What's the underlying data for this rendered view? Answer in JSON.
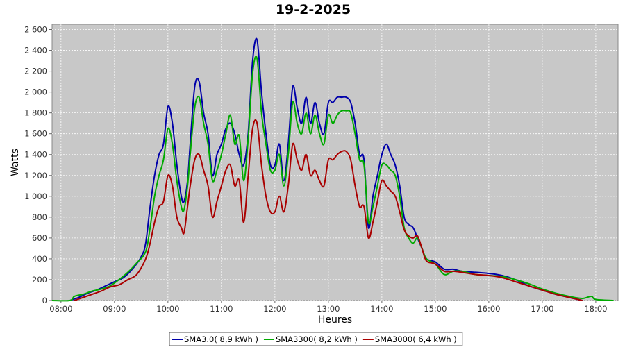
{
  "chart_data": {
    "type": "line",
    "title": "19-2-2025",
    "xlabel": "Heures",
    "ylabel": "Watts",
    "xlim": [
      "07:50",
      "18:25"
    ],
    "ylim": [
      0,
      2650
    ],
    "x_ticks": [
      "08:00",
      "09:00",
      "10:00",
      "11:00",
      "12:00",
      "13:00",
      "14:00",
      "15:00",
      "16:00",
      "17:00",
      "18:00"
    ],
    "y_ticks": [
      "0",
      "200",
      "400",
      "600",
      "800",
      "1 000",
      "1 200",
      "1 400",
      "1 600",
      "1 800",
      "2 000",
      "2 200",
      "2 400",
      "2 600"
    ],
    "grid": true,
    "legend_position": "bottom",
    "colors": {
      "plot_background": "#c8c8c8",
      "grid": "#ffffff"
    },
    "series": [
      {
        "name": "SMA3.0( 8,9 kWh )",
        "color": "#0000aa",
        "points": [
          [
            "08:10",
            0
          ],
          [
            "08:20",
            30
          ],
          [
            "08:30",
            70
          ],
          [
            "08:40",
            100
          ],
          [
            "08:50",
            140
          ],
          [
            "09:00",
            180
          ],
          [
            "09:10",
            220
          ],
          [
            "09:20",
            300
          ],
          [
            "09:30",
            420
          ],
          [
            "09:35",
            550
          ],
          [
            "09:40",
            900
          ],
          [
            "09:45",
            1200
          ],
          [
            "09:50",
            1400
          ],
          [
            "09:55",
            1500
          ],
          [
            "10:00",
            1860
          ],
          [
            "10:05",
            1700
          ],
          [
            "10:10",
            1300
          ],
          [
            "10:15",
            1000
          ],
          [
            "10:18",
            950
          ],
          [
            "10:22",
            1150
          ],
          [
            "10:25",
            1500
          ],
          [
            "10:30",
            2050
          ],
          [
            "10:35",
            2100
          ],
          [
            "10:40",
            1800
          ],
          [
            "10:45",
            1600
          ],
          [
            "10:50",
            1200
          ],
          [
            "10:55",
            1400
          ],
          [
            "11:00",
            1500
          ],
          [
            "11:05",
            1650
          ],
          [
            "11:10",
            1700
          ],
          [
            "11:15",
            1600
          ],
          [
            "11:20",
            1400
          ],
          [
            "11:25",
            1300
          ],
          [
            "11:30",
            1600
          ],
          [
            "11:35",
            2300
          ],
          [
            "11:40",
            2500
          ],
          [
            "11:45",
            2000
          ],
          [
            "11:50",
            1600
          ],
          [
            "11:55",
            1300
          ],
          [
            "12:00",
            1300
          ],
          [
            "12:05",
            1500
          ],
          [
            "12:10",
            1150
          ],
          [
            "12:15",
            1500
          ],
          [
            "12:20",
            2050
          ],
          [
            "12:25",
            1850
          ],
          [
            "12:30",
            1700
          ],
          [
            "12:35",
            1950
          ],
          [
            "12:40",
            1700
          ],
          [
            "12:45",
            1900
          ],
          [
            "12:50",
            1700
          ],
          [
            "12:55",
            1600
          ],
          [
            "13:00",
            1900
          ],
          [
            "13:05",
            1900
          ],
          [
            "13:10",
            1950
          ],
          [
            "13:15",
            1950
          ],
          [
            "13:20",
            1950
          ],
          [
            "13:25",
            1900
          ],
          [
            "13:30",
            1700
          ],
          [
            "13:35",
            1400
          ],
          [
            "13:40",
            1350
          ],
          [
            "13:45",
            700
          ],
          [
            "13:50",
            1000
          ],
          [
            "13:55",
            1200
          ],
          [
            "14:00",
            1400
          ],
          [
            "14:05",
            1500
          ],
          [
            "14:10",
            1400
          ],
          [
            "14:15",
            1300
          ],
          [
            "14:20",
            1100
          ],
          [
            "14:25",
            800
          ],
          [
            "14:30",
            730
          ],
          [
            "14:35",
            700
          ],
          [
            "14:40",
            600
          ],
          [
            "14:45",
            500
          ],
          [
            "14:50",
            400
          ],
          [
            "15:00",
            370
          ],
          [
            "15:10",
            300
          ],
          [
            "15:20",
            300
          ],
          [
            "15:30",
            280
          ],
          [
            "15:45",
            270
          ],
          [
            "16:00",
            260
          ],
          [
            "16:15",
            240
          ],
          [
            "16:30",
            200
          ],
          [
            "16:45",
            140
          ],
          [
            "17:00",
            100
          ],
          [
            "17:15",
            60
          ],
          [
            "17:30",
            30
          ],
          [
            "17:40",
            10
          ],
          [
            "17:45",
            0
          ]
        ]
      },
      {
        "name": "SMA3300( 8,2 kWh )",
        "color": "#00aa00",
        "points": [
          [
            "07:50",
            0
          ],
          [
            "08:10",
            0
          ],
          [
            "08:15",
            40
          ],
          [
            "08:25",
            60
          ],
          [
            "08:35",
            90
          ],
          [
            "08:45",
            110
          ],
          [
            "08:55",
            140
          ],
          [
            "09:05",
            200
          ],
          [
            "09:15",
            270
          ],
          [
            "09:25",
            360
          ],
          [
            "09:35",
            470
          ],
          [
            "09:40",
            700
          ],
          [
            "09:45",
            1000
          ],
          [
            "09:50",
            1200
          ],
          [
            "09:55",
            1350
          ],
          [
            "10:00",
            1650
          ],
          [
            "10:05",
            1500
          ],
          [
            "10:10",
            1150
          ],
          [
            "10:15",
            900
          ],
          [
            "10:18",
            870
          ],
          [
            "10:22",
            1100
          ],
          [
            "10:25",
            1400
          ],
          [
            "10:30",
            1850
          ],
          [
            "10:35",
            1950
          ],
          [
            "10:40",
            1700
          ],
          [
            "10:45",
            1500
          ],
          [
            "10:50",
            1150
          ],
          [
            "10:55",
            1250
          ],
          [
            "11:00",
            1400
          ],
          [
            "11:05",
            1600
          ],
          [
            "11:10",
            1780
          ],
          [
            "11:15",
            1500
          ],
          [
            "11:20",
            1580
          ],
          [
            "11:25",
            1150
          ],
          [
            "11:30",
            1550
          ],
          [
            "11:35",
            2180
          ],
          [
            "11:40",
            2320
          ],
          [
            "11:45",
            1800
          ],
          [
            "11:50",
            1500
          ],
          [
            "11:55",
            1250
          ],
          [
            "12:00",
            1250
          ],
          [
            "12:05",
            1400
          ],
          [
            "12:10",
            1100
          ],
          [
            "12:15",
            1400
          ],
          [
            "12:20",
            1900
          ],
          [
            "12:25",
            1700
          ],
          [
            "12:30",
            1600
          ],
          [
            "12:35",
            1800
          ],
          [
            "12:40",
            1600
          ],
          [
            "12:45",
            1780
          ],
          [
            "12:50",
            1600
          ],
          [
            "12:55",
            1500
          ],
          [
            "13:00",
            1780
          ],
          [
            "13:05",
            1700
          ],
          [
            "13:10",
            1780
          ],
          [
            "13:15",
            1820
          ],
          [
            "13:20",
            1820
          ],
          [
            "13:25",
            1800
          ],
          [
            "13:30",
            1600
          ],
          [
            "13:35",
            1350
          ],
          [
            "13:40",
            1300
          ],
          [
            "13:45",
            750
          ],
          [
            "13:50",
            900
          ],
          [
            "13:55",
            1100
          ],
          [
            "14:00",
            1300
          ],
          [
            "14:05",
            1300
          ],
          [
            "14:10",
            1250
          ],
          [
            "14:15",
            1200
          ],
          [
            "14:20",
            1000
          ],
          [
            "14:25",
            700
          ],
          [
            "14:30",
            600
          ],
          [
            "14:35",
            550
          ],
          [
            "14:40",
            600
          ],
          [
            "14:45",
            500
          ],
          [
            "14:50",
            400
          ],
          [
            "15:00",
            350
          ],
          [
            "15:10",
            250
          ],
          [
            "15:20",
            280
          ],
          [
            "15:30",
            280
          ],
          [
            "15:45",
            250
          ],
          [
            "16:00",
            240
          ],
          [
            "16:15",
            230
          ],
          [
            "16:30",
            200
          ],
          [
            "16:45",
            160
          ],
          [
            "17:00",
            110
          ],
          [
            "17:15",
            70
          ],
          [
            "17:30",
            40
          ],
          [
            "17:45",
            20
          ],
          [
            "17:55",
            40
          ],
          [
            "18:00",
            10
          ],
          [
            "18:20",
            0
          ]
        ]
      },
      {
        "name": "SMA3000( 6,4 kWh )",
        "color": "#aa0000",
        "points": [
          [
            "08:15",
            0
          ],
          [
            "08:25",
            30
          ],
          [
            "08:35",
            60
          ],
          [
            "08:45",
            90
          ],
          [
            "08:55",
            130
          ],
          [
            "09:05",
            150
          ],
          [
            "09:15",
            200
          ],
          [
            "09:25",
            250
          ],
          [
            "09:35",
            400
          ],
          [
            "09:40",
            550
          ],
          [
            "09:45",
            750
          ],
          [
            "09:50",
            900
          ],
          [
            "09:55",
            950
          ],
          [
            "10:00",
            1200
          ],
          [
            "10:05",
            1100
          ],
          [
            "10:10",
            800
          ],
          [
            "10:15",
            700
          ],
          [
            "10:18",
            650
          ],
          [
            "10:22",
            900
          ],
          [
            "10:25",
            1100
          ],
          [
            "10:30",
            1350
          ],
          [
            "10:35",
            1400
          ],
          [
            "10:40",
            1250
          ],
          [
            "10:45",
            1100
          ],
          [
            "10:50",
            800
          ],
          [
            "10:55",
            950
          ],
          [
            "11:00",
            1100
          ],
          [
            "11:05",
            1250
          ],
          [
            "11:10",
            1300
          ],
          [
            "11:15",
            1100
          ],
          [
            "11:20",
            1150
          ],
          [
            "11:25",
            750
          ],
          [
            "11:30",
            1200
          ],
          [
            "11:35",
            1650
          ],
          [
            "11:40",
            1700
          ],
          [
            "11:45",
            1300
          ],
          [
            "11:50",
            1000
          ],
          [
            "11:55",
            850
          ],
          [
            "12:00",
            850
          ],
          [
            "12:05",
            1000
          ],
          [
            "12:10",
            850
          ],
          [
            "12:15",
            1100
          ],
          [
            "12:20",
            1500
          ],
          [
            "12:25",
            1350
          ],
          [
            "12:30",
            1250
          ],
          [
            "12:35",
            1400
          ],
          [
            "12:40",
            1200
          ],
          [
            "12:45",
            1250
          ],
          [
            "12:50",
            1150
          ],
          [
            "12:55",
            1100
          ],
          [
            "13:00",
            1350
          ],
          [
            "13:05",
            1350
          ],
          [
            "13:10",
            1400
          ],
          [
            "13:15",
            1430
          ],
          [
            "13:20",
            1430
          ],
          [
            "13:25",
            1350
          ],
          [
            "13:30",
            1100
          ],
          [
            "13:35",
            900
          ],
          [
            "13:40",
            900
          ],
          [
            "13:45",
            600
          ],
          [
            "13:50",
            750
          ],
          [
            "13:55",
            950
          ],
          [
            "14:00",
            1150
          ],
          [
            "14:05",
            1100
          ],
          [
            "14:10",
            1050
          ],
          [
            "14:15",
            1000
          ],
          [
            "14:20",
            850
          ],
          [
            "14:25",
            680
          ],
          [
            "14:30",
            620
          ],
          [
            "14:35",
            600
          ],
          [
            "14:40",
            620
          ],
          [
            "14:45",
            500
          ],
          [
            "14:50",
            380
          ],
          [
            "15:00",
            350
          ],
          [
            "15:10",
            280
          ],
          [
            "15:20",
            280
          ],
          [
            "15:30",
            270
          ],
          [
            "15:45",
            250
          ],
          [
            "16:00",
            240
          ],
          [
            "16:15",
            220
          ],
          [
            "16:30",
            180
          ],
          [
            "16:45",
            140
          ],
          [
            "17:00",
            100
          ],
          [
            "17:15",
            60
          ],
          [
            "17:30",
            30
          ],
          [
            "17:45",
            0
          ]
        ]
      }
    ]
  }
}
